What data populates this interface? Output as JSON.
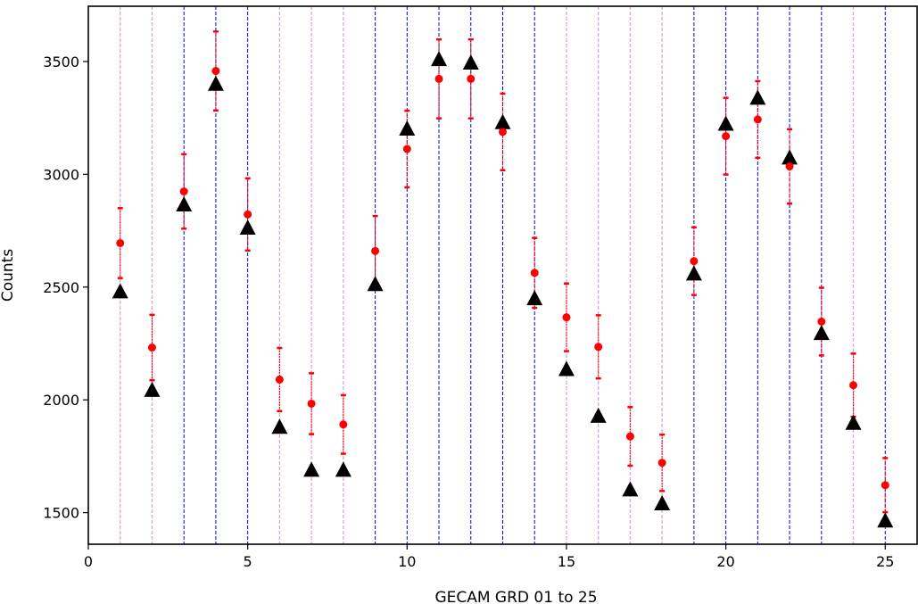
{
  "chart_data": {
    "type": "scatter",
    "title": "",
    "xlabel": "GECAM GRD 01 to 25",
    "ylabel": "Counts",
    "xlim": [
      0,
      26
    ],
    "ylim": [
      1360,
      3745
    ],
    "xticks": [
      0,
      5,
      10,
      15,
      20,
      25
    ],
    "yticks": [
      1500,
      2000,
      2500,
      3000,
      3500
    ],
    "grid": false,
    "vlines": {
      "blue_dashed_at": [
        3,
        4,
        5,
        9,
        10,
        11,
        12,
        13,
        14,
        19,
        20,
        21,
        22,
        23,
        25
      ],
      "pink_dashed_at": [
        1,
        2,
        6,
        7,
        8,
        15,
        16,
        17,
        18,
        24
      ],
      "blue_color": "#0000ff",
      "pink_color": "#d9a6dc"
    },
    "series": [
      {
        "marker": "circle",
        "color": "#ff0000",
        "x": [
          1,
          2,
          3,
          4,
          5,
          6,
          7,
          8,
          9,
          10,
          11,
          12,
          13,
          14,
          15,
          16,
          17,
          18,
          19,
          20,
          21,
          22,
          23,
          24,
          25
        ],
        "y": [
          2695,
          2232,
          2924,
          3458,
          2822,
          2090,
          1983,
          1891,
          2660,
          3112,
          3423,
          3423,
          3188,
          2563,
          2366,
          2235,
          1838,
          1721,
          2615,
          3169,
          3243,
          3035,
          2347,
          2065,
          1622
        ],
        "err": [
          155,
          145,
          165,
          175,
          160,
          140,
          135,
          130,
          155,
          170,
          175,
          175,
          170,
          155,
          150,
          140,
          130,
          125,
          150,
          170,
          170,
          165,
          150,
          140,
          120
        ]
      },
      {
        "marker": "triangle",
        "color": "#000000",
        "x": [
          1,
          2,
          3,
          4,
          5,
          6,
          7,
          8,
          9,
          10,
          11,
          12,
          13,
          14,
          15,
          16,
          17,
          18,
          19,
          20,
          21,
          22,
          23,
          24,
          25
        ],
        "y": [
          2478,
          2041,
          2863,
          3398,
          2760,
          1877,
          1687,
          1687,
          2510,
          3199,
          3507,
          3492,
          3228,
          2447,
          2133,
          1926,
          1600,
          1538,
          2557,
          3221,
          3336,
          3071,
          2293,
          1895,
          1462
        ]
      }
    ]
  }
}
